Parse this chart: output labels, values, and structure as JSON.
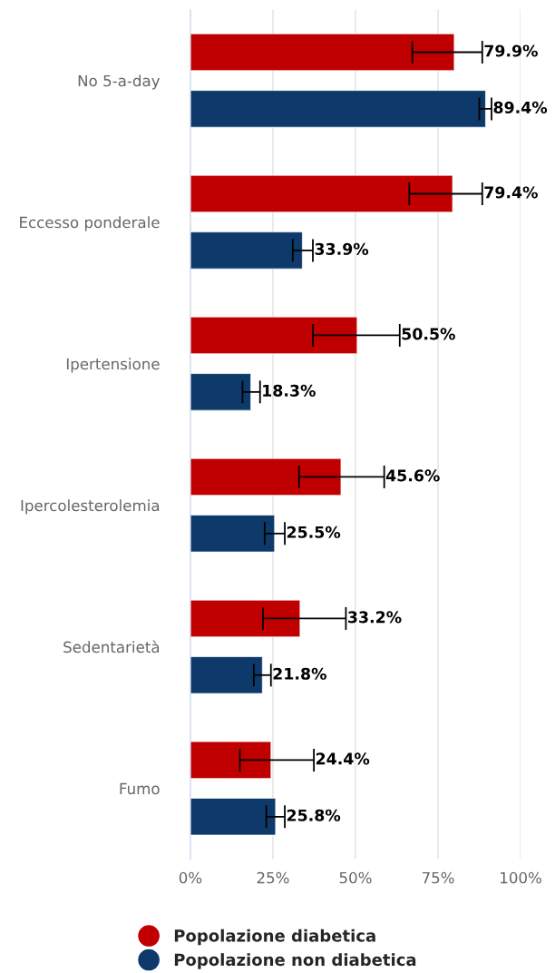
{
  "chart_data": {
    "type": "bar",
    "orientation": "horizontal",
    "categories": [
      "No 5-a-day",
      "Eccesso ponderale",
      "Ipertensione",
      "Ipercolesterolemia",
      "Sedentarietà",
      "Fumo"
    ],
    "series": [
      {
        "name": "Popolazione diabetica",
        "color": "#c00000",
        "values": [
          79.9,
          79.4,
          50.5,
          45.6,
          33.2,
          24.4
        ],
        "errors": [
          [
            67.2,
            88.4
          ],
          [
            66.3,
            88.4
          ],
          [
            37.1,
            63.4
          ],
          [
            32.9,
            58.7
          ],
          [
            22.0,
            47.1
          ],
          [
            15.0,
            37.4
          ]
        ],
        "value_labels": [
          "79.9%",
          "79.4%",
          "50.5%",
          "45.6%",
          "33.2%",
          "24.4%"
        ]
      },
      {
        "name": "Popolazione non diabetica",
        "color": "#0e3a6b",
        "values": [
          89.4,
          33.9,
          18.3,
          25.5,
          21.8,
          25.8
        ],
        "errors": [
          [
            87.5,
            91.2
          ],
          [
            31.0,
            37.1
          ],
          [
            15.8,
            21.1
          ],
          [
            22.5,
            28.6
          ],
          [
            19.2,
            24.4
          ],
          [
            23.0,
            28.6
          ]
        ],
        "value_labels": [
          "89.4%",
          "33.9%",
          "18.3%",
          "25.5%",
          "21.8%",
          "25.8%"
        ]
      }
    ],
    "xlim": [
      0,
      100
    ],
    "xticks": [
      {
        "value": 0,
        "label": "0%"
      },
      {
        "value": 25,
        "label": "25%"
      },
      {
        "value": 50,
        "label": "50%"
      },
      {
        "value": 75,
        "label": "75%"
      },
      {
        "value": 100,
        "label": "100%"
      }
    ],
    "grid": "x",
    "legend": "bottom"
  }
}
